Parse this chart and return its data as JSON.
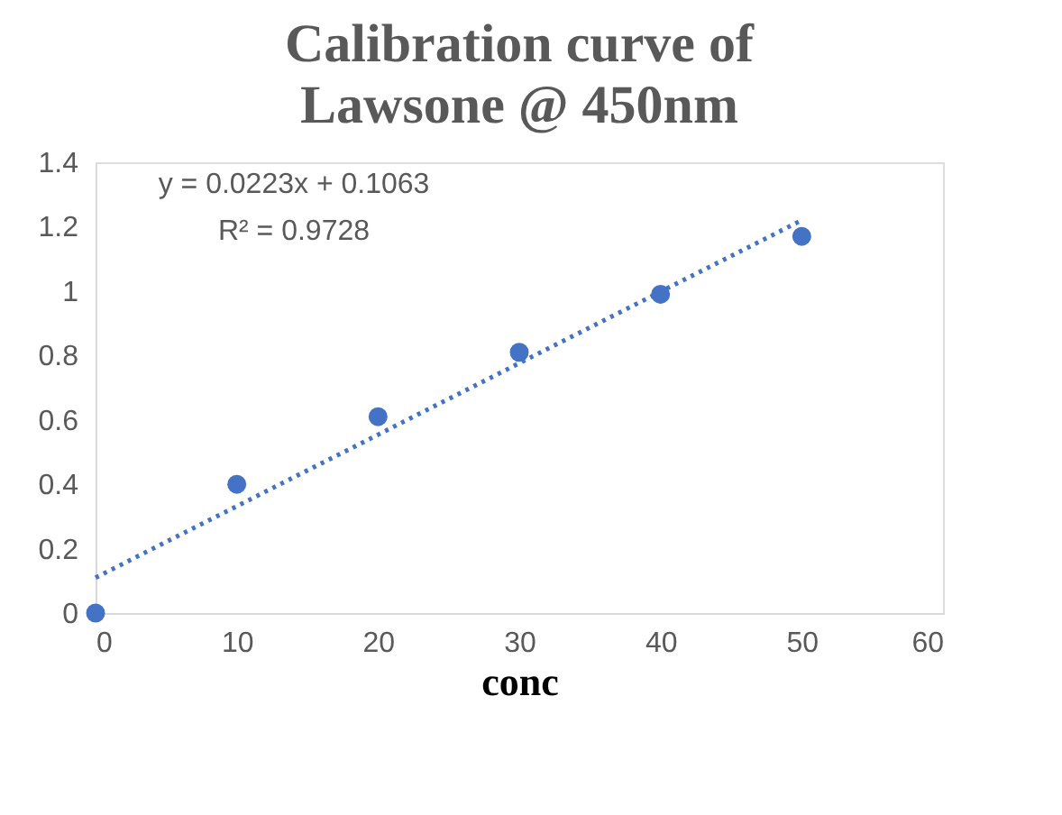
{
  "chart_data": {
    "type": "scatter",
    "title": "Calibration curve of Lawsone @ 450nm",
    "xlabel": "conc",
    "x": [
      0,
      10,
      20,
      30,
      40,
      50
    ],
    "series": [
      {
        "marker": "circle",
        "color": "#4472c4",
        "values": [
          0,
          0.4,
          0.61,
          0.81,
          0.99,
          1.17
        ]
      },
      {
        "type": "line",
        "color": "#4472c4",
        "line_style": "dotted",
        "marker": "none",
        "x": [
          0,
          50
        ],
        "values": [
          0.11,
          1.22
        ]
      }
    ],
    "xlim": [
      0,
      60
    ],
    "xticks": [
      0,
      10,
      20,
      30,
      40,
      50,
      60
    ],
    "ylim": [
      0,
      1.4
    ],
    "yticks": [
      0,
      0.2,
      0.4,
      0.6,
      0.8,
      1,
      1.2,
      1.4
    ],
    "annotations": [
      "y = 0.0223x + 0.1063",
      "R² = 0.9728"
    ],
    "grid": false,
    "legend": false
  }
}
